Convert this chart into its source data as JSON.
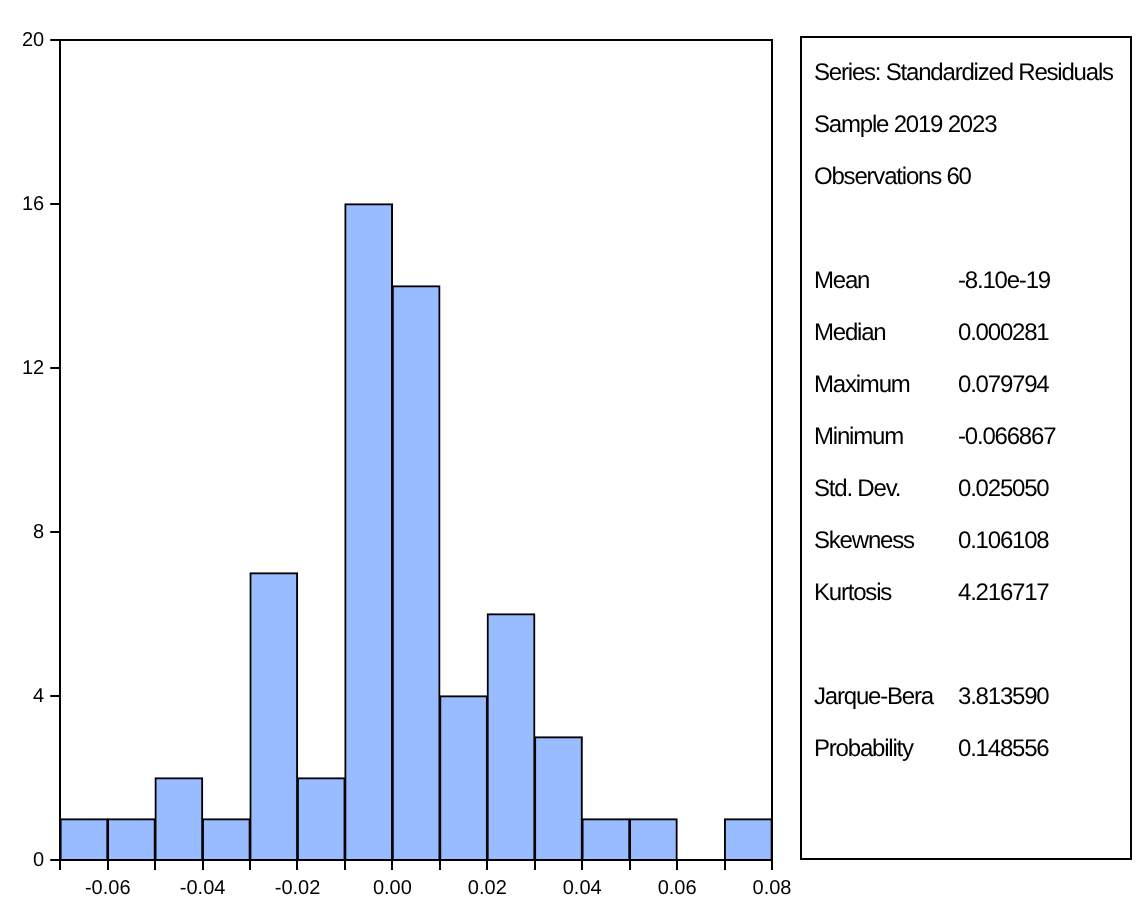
{
  "chart_data": {
    "type": "histogram",
    "bins": [
      -0.07,
      -0.06,
      -0.05,
      -0.04,
      -0.03,
      -0.02,
      -0.01,
      0,
      0.01,
      0.02,
      0.03,
      0.04,
      0.05,
      0.06,
      0.07,
      0.08
    ],
    "values": [
      1,
      1,
      2,
      1,
      7,
      2,
      16,
      14,
      4,
      6,
      3,
      1,
      1,
      0,
      1
    ],
    "color": "#99bbff",
    "xlim": [
      -0.07,
      0.08
    ],
    "xticks": [
      {
        "value": -0.07,
        "label": null
      },
      {
        "value": -0.06,
        "label": "-0.06"
      },
      {
        "value": -0.05,
        "label": null
      },
      {
        "value": -0.04,
        "label": "-0.04"
      },
      {
        "value": -0.03,
        "label": null
      },
      {
        "value": -0.02,
        "label": "-0.02"
      },
      {
        "value": -0.01,
        "label": null
      },
      {
        "value": 0,
        "label": "0.00"
      },
      {
        "value": 0.01,
        "label": null
      },
      {
        "value": 0.02,
        "label": "0.02"
      },
      {
        "value": 0.03,
        "label": null
      },
      {
        "value": 0.04,
        "label": "0.04"
      },
      {
        "value": 0.05,
        "label": null
      },
      {
        "value": 0.06,
        "label": "0.06"
      },
      {
        "value": 0.07,
        "label": null
      },
      {
        "value": 0.08,
        "label": "0.08"
      }
    ],
    "ylim": [
      0,
      20
    ],
    "yticks": [
      0,
      4,
      8,
      12,
      16,
      20
    ],
    "grid": false,
    "legend": false,
    "annotations": [
      "Series: Standardized Residuals",
      "Sample 2019 2023",
      "Observations 60",
      "Mean",
      "-8.10e-19",
      "Median",
      "0.000281",
      "Maximum",
      "0.079794",
      "Minimum",
      "-0.066867",
      "Std. Dev.",
      "0.025050",
      "Skewness",
      "0.106108",
      "Kurtosis",
      "4.216717",
      "Jarque-Bera",
      "3.813590",
      "Probability",
      "0.148556"
    ]
  }
}
